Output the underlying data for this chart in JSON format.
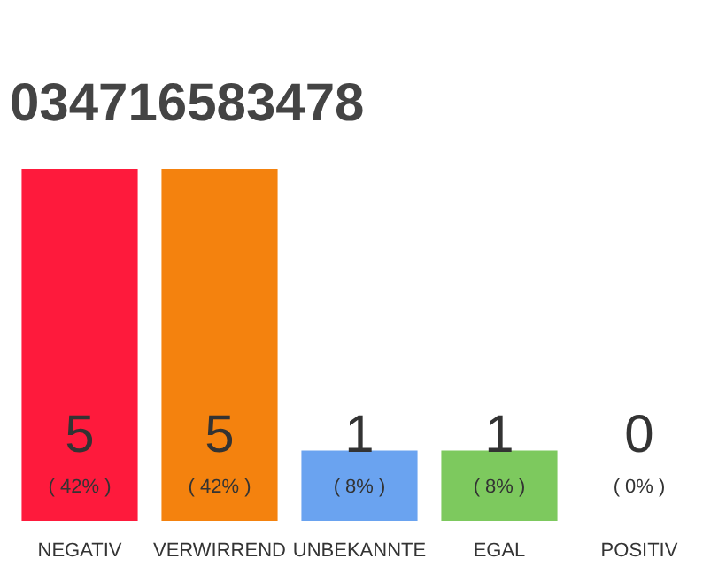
{
  "chart_data": {
    "type": "bar",
    "title": "034716583478",
    "categories": [
      "NEGATIV",
      "VERWIRREND",
      "UNBEKANNTE",
      "EGAL",
      "POSITIV"
    ],
    "values": [
      5,
      5,
      1,
      1,
      0
    ],
    "colors": [
      "#fe1a3c",
      "#f4820e",
      "#6aa3f0",
      "#7dc95e",
      "#bbbbbb"
    ],
    "value_labels": [
      "5",
      "5",
      "1",
      "1",
      "0"
    ],
    "annotations": [
      "( 42% )",
      "( 42% )",
      "( 8% )",
      "( 8% )",
      "( 0% )"
    ],
    "tick_labels": "x"
  }
}
